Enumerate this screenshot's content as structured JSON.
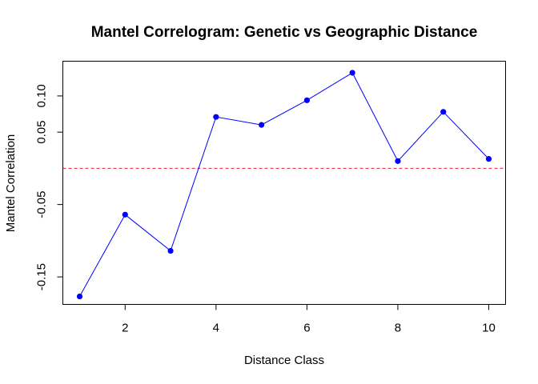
{
  "chart_data": {
    "type": "line",
    "title": "Mantel Correlogram: Genetic vs Geographic Distance",
    "xlabel": "Distance Class",
    "ylabel": "Mantel Correlation",
    "x": [
      1,
      2,
      3,
      4,
      5,
      6,
      7,
      8,
      9,
      10
    ],
    "series": [
      {
        "values": [
          -0.177,
          -0.064,
          -0.114,
          0.071,
          0.06,
          0.094,
          0.132,
          0.01,
          0.078,
          0.013
        ]
      }
    ],
    "xlim": [
      0.63,
      10.37
    ],
    "ylim": [
      -0.188,
      0.148
    ],
    "xticks": [
      2,
      4,
      6,
      8,
      10
    ],
    "yticks": [
      -0.15,
      -0.05,
      0.05,
      0.1
    ],
    "ytick_labels": [
      "-0.15",
      "-0.05",
      "0.05",
      "0.10"
    ],
    "reference_line": {
      "y": 0,
      "color": "#e8203a",
      "style": "dashed"
    },
    "line_color": "#0000ff",
    "marker_color": "#0000ff",
    "grid": false,
    "legend": "none"
  }
}
